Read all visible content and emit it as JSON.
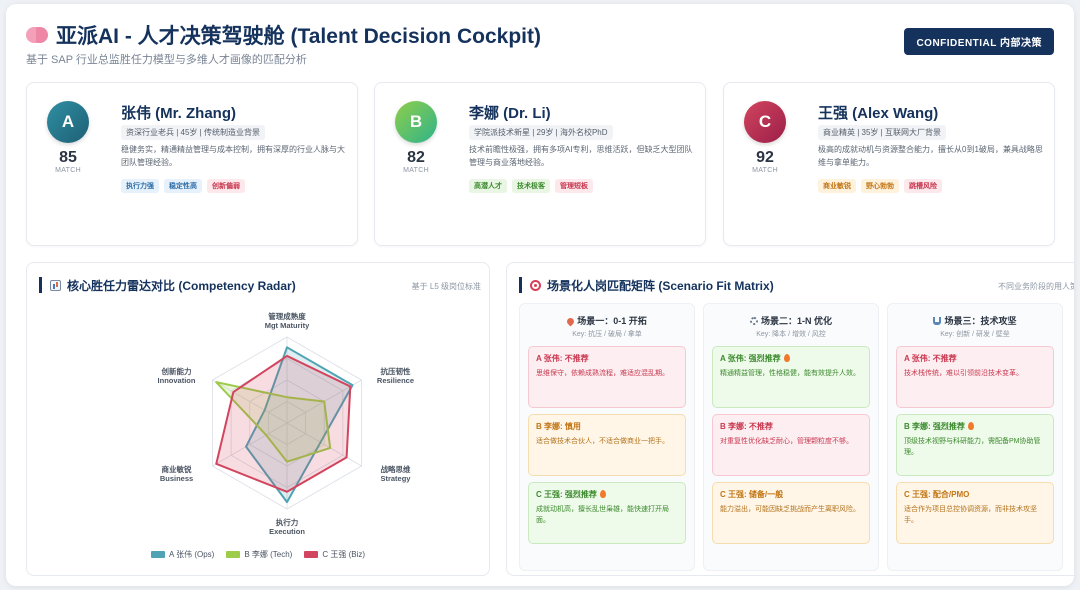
{
  "header": {
    "title": "亚派AI - 人才决策驾驶舱 (Talent Decision Cockpit)",
    "subtitle": "基于 SAP 行业总监胜任力模型与多维人才画像的匹配分析",
    "badge": "CONFIDENTIAL 内部决策",
    "icon": "brain-icon"
  },
  "candidates": [
    {
      "initial": "A",
      "score": "85",
      "match_label": "MATCH",
      "name": "张伟 (Mr. Zhang)",
      "meta": "资深行业老兵 | 45岁 | 传统制造业背景",
      "desc": "稳健务实，精通精益管理与成本控制，拥有深厚的行业人脉与大团队管理经验。",
      "tags": [
        {
          "label": "执行力强",
          "color": "blue"
        },
        {
          "label": "稳定性高",
          "color": "blue"
        },
        {
          "label": "创新偏弱",
          "color": "red"
        }
      ],
      "gradient": [
        "#2f8fa3",
        "#1e5f74"
      ]
    },
    {
      "initial": "B",
      "score": "82",
      "match_label": "MATCH",
      "name": "李娜 (Dr. Li)",
      "meta": "学院派技术新星 | 29岁 | 海外名校PhD",
      "desc": "技术前瞻性极强，拥有多项AI专利，思维活跃，但缺乏大型团队管理与商业落地经验。",
      "tags": [
        {
          "label": "高潜人才",
          "color": "green"
        },
        {
          "label": "技术极客",
          "color": "green"
        },
        {
          "label": "管理短板",
          "color": "red"
        }
      ],
      "gradient": [
        "#8fce4a",
        "#2fb38a"
      ]
    },
    {
      "initial": "C",
      "score": "92",
      "match_label": "MATCH",
      "name": "王强 (Alex Wang)",
      "meta": "商业精英 | 35岁 | 互联网大厂背景",
      "desc": "极高的成就动机与资源整合能力，擅长从0到1破局，兼具战略思维与拿单能力。",
      "tags": [
        {
          "label": "商业敏锐",
          "color": "orange"
        },
        {
          "label": "野心勃勃",
          "color": "orange"
        },
        {
          "label": "跳槽风险",
          "color": "red"
        }
      ],
      "gradient": [
        "#d2455f",
        "#9b1e48"
      ]
    }
  ],
  "radar": {
    "title": "核心胜任力雷达对比 (Competency Radar)",
    "note": "基于 L5 级岗位标准",
    "icon": "chart-icon"
  },
  "chart_data": {
    "type": "radar",
    "axes": [
      {
        "cn": "管理成熟度",
        "en": "Mgt Maturity"
      },
      {
        "cn": "抗压韧性",
        "en": "Resilience"
      },
      {
        "cn": "战略思维",
        "en": "Strategy"
      },
      {
        "cn": "执行力",
        "en": "Execution"
      },
      {
        "cn": "商业敏锐",
        "en": "Business"
      },
      {
        "cn": "创新能力",
        "en": "Innovation"
      }
    ],
    "max": 100,
    "series": [
      {
        "name": "A 张伟 (Ops)",
        "color": "#4fa3b4",
        "values": [
          88,
          88,
          45,
          92,
          55,
          30
        ]
      },
      {
        "name": "B 李娜 (Tech)",
        "color": "#9ccc4a",
        "values": [
          30,
          50,
          58,
          45,
          28,
          95
        ]
      },
      {
        "name": "C 王强 (Biz)",
        "color": "#d2455f",
        "values": [
          78,
          85,
          80,
          80,
          95,
          72
        ]
      }
    ]
  },
  "matrix": {
    "title": "场景化人岗匹配矩阵 (Scenario Fit Matrix)",
    "note": "不同业务阶段的用人策略",
    "icon": "target-icon",
    "scenarios": [
      {
        "icon": "rocket-icon",
        "title": "场景一：0-1 开拓",
        "key": "Key: 抗压 / 破局 / 拿单",
        "cards": [
          {
            "color": "red",
            "title": "A 张伟: 不推荐",
            "hot": false,
            "desc": "思维保守，依赖成熟流程，难适应混乱期。"
          },
          {
            "color": "orange",
            "title": "B 李娜: 慎用",
            "hot": false,
            "desc": "适合做技术合伙人，不适合做商业一把手。"
          },
          {
            "color": "green",
            "title": "C 王强: 强烈推荐",
            "hot": true,
            "desc": "成就动机高，擅长乱世枭雄，能快速打开局面。"
          }
        ]
      },
      {
        "icon": "gear-icon",
        "title": "场景二：1-N 优化",
        "key": "Key: 降本 / 增效 / 风控",
        "cards": [
          {
            "color": "green",
            "title": "A 张伟: 强烈推荐",
            "hot": true,
            "desc": "精通精益管理，性格稳健，能有效提升人效。"
          },
          {
            "color": "red",
            "title": "B 李娜: 不推荐",
            "hot": false,
            "desc": "对重复性优化缺乏耐心，管理颗粒度不够。"
          },
          {
            "color": "orange",
            "title": "C 王强: 储备/一般",
            "hot": false,
            "desc": "能力溢出，可能因缺乏挑战而产生离职风险。"
          }
        ]
      },
      {
        "icon": "flask-icon",
        "title": "场景三：技术攻坚",
        "key": "Key: 创新 / 研发 / 壁垒",
        "cards": [
          {
            "color": "red",
            "title": "A 张伟: 不推荐",
            "hot": false,
            "desc": "技术栈传统，难以引领前沿技术变革。"
          },
          {
            "color": "green",
            "title": "B 李娜: 强烈推荐",
            "hot": true,
            "desc": "顶级技术视野与科研能力，需配备PM协助管理。"
          },
          {
            "color": "orange",
            "title": "C 王强: 配合/PMO",
            "hot": false,
            "desc": "适合作为项目总控协调资源，而非技术攻坚手。"
          }
        ]
      }
    ]
  }
}
